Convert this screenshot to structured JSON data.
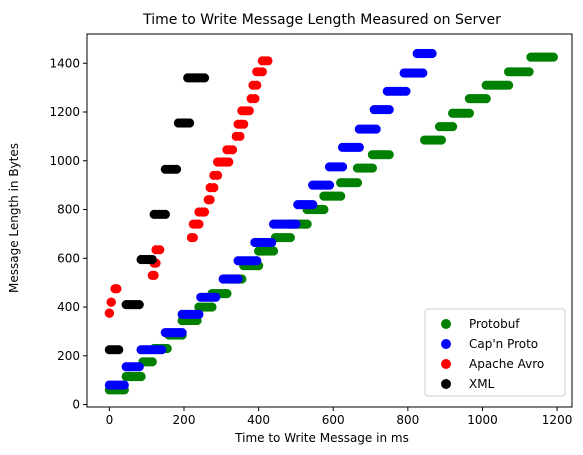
{
  "chart_data": {
    "type": "scatter",
    "title": "Time to Write Message Length Measured on Server",
    "xlabel": "Time to Write Message in ms",
    "ylabel": "Message Length in Bytes",
    "xlim": [
      -60,
      1240
    ],
    "ylim": [
      -10,
      1520
    ],
    "xticks": [
      0,
      200,
      400,
      600,
      800,
      1000,
      1200
    ],
    "yticks": [
      0,
      200,
      400,
      600,
      800,
      1000,
      1200,
      1400
    ],
    "legend_position": "lower-right",
    "grid": false,
    "series": [
      {
        "name": "Protobuf",
        "color": "#008000",
        "clusters": [
          {
            "y": 60,
            "x_min": 0,
            "x_max": 40
          },
          {
            "y": 115,
            "x_min": 45,
            "x_max": 85
          },
          {
            "y": 175,
            "x_min": 90,
            "x_max": 115
          },
          {
            "y": 230,
            "x_min": 120,
            "x_max": 155
          },
          {
            "y": 285,
            "x_min": 160,
            "x_max": 195
          },
          {
            "y": 345,
            "x_min": 195,
            "x_max": 235
          },
          {
            "y": 400,
            "x_min": 240,
            "x_max": 275
          },
          {
            "y": 455,
            "x_min": 275,
            "x_max": 315
          },
          {
            "y": 515,
            "x_min": 320,
            "x_max": 355
          },
          {
            "y": 570,
            "x_min": 360,
            "x_max": 400
          },
          {
            "y": 630,
            "x_min": 400,
            "x_max": 440
          },
          {
            "y": 685,
            "x_min": 445,
            "x_max": 485
          },
          {
            "y": 740,
            "x_min": 485,
            "x_max": 530
          },
          {
            "y": 800,
            "x_min": 530,
            "x_max": 575
          },
          {
            "y": 855,
            "x_min": 575,
            "x_max": 620
          },
          {
            "y": 910,
            "x_min": 620,
            "x_max": 665
          },
          {
            "y": 970,
            "x_min": 665,
            "x_max": 705
          },
          {
            "y": 1025,
            "x_min": 705,
            "x_max": 750
          },
          {
            "y": 1085,
            "x_min": 845,
            "x_max": 890
          },
          {
            "y": 1140,
            "x_min": 885,
            "x_max": 920
          },
          {
            "y": 1195,
            "x_min": 920,
            "x_max": 965
          },
          {
            "y": 1255,
            "x_min": 965,
            "x_max": 1010
          },
          {
            "y": 1310,
            "x_min": 1010,
            "x_max": 1070
          },
          {
            "y": 1365,
            "x_min": 1070,
            "x_max": 1125
          },
          {
            "y": 1425,
            "x_min": 1130,
            "x_max": 1190
          }
        ]
      },
      {
        "name": "Cap'n Proto",
        "color": "#0000ff",
        "clusters": [
          {
            "y": 80,
            "x_min": 0,
            "x_max": 40
          },
          {
            "y": 155,
            "x_min": 45,
            "x_max": 80
          },
          {
            "y": 225,
            "x_min": 85,
            "x_max": 140
          },
          {
            "y": 295,
            "x_min": 150,
            "x_max": 195
          },
          {
            "y": 370,
            "x_min": 195,
            "x_max": 240
          },
          {
            "y": 440,
            "x_min": 245,
            "x_max": 285
          },
          {
            "y": 515,
            "x_min": 305,
            "x_max": 345
          },
          {
            "y": 590,
            "x_min": 345,
            "x_max": 395
          },
          {
            "y": 665,
            "x_min": 390,
            "x_max": 435
          },
          {
            "y": 740,
            "x_min": 440,
            "x_max": 500
          },
          {
            "y": 820,
            "x_min": 505,
            "x_max": 545
          },
          {
            "y": 900,
            "x_min": 545,
            "x_max": 590
          },
          {
            "y": 975,
            "x_min": 590,
            "x_max": 625
          },
          {
            "y": 1055,
            "x_min": 625,
            "x_max": 670
          },
          {
            "y": 1130,
            "x_min": 670,
            "x_max": 715
          },
          {
            "y": 1210,
            "x_min": 710,
            "x_max": 750
          },
          {
            "y": 1285,
            "x_min": 745,
            "x_max": 795
          },
          {
            "y": 1360,
            "x_min": 790,
            "x_max": 840
          },
          {
            "y": 1440,
            "x_min": 825,
            "x_max": 865
          }
        ]
      },
      {
        "name": "Apache Avro",
        "color": "#ff0000",
        "clusters": [
          {
            "y": 375,
            "x_min": 0,
            "x_max": 0
          },
          {
            "y": 420,
            "x_min": 5,
            "x_max": 5
          },
          {
            "y": 475,
            "x_min": 15,
            "x_max": 20
          },
          {
            "y": 530,
            "x_min": 115,
            "x_max": 120
          },
          {
            "y": 580,
            "x_min": 120,
            "x_max": 125
          },
          {
            "y": 635,
            "x_min": 125,
            "x_max": 135
          },
          {
            "y": 685,
            "x_min": 220,
            "x_max": 225
          },
          {
            "y": 740,
            "x_min": 225,
            "x_max": 240
          },
          {
            "y": 790,
            "x_min": 240,
            "x_max": 255
          },
          {
            "y": 840,
            "x_min": 265,
            "x_max": 270
          },
          {
            "y": 890,
            "x_min": 270,
            "x_max": 280
          },
          {
            "y": 940,
            "x_min": 280,
            "x_max": 290
          },
          {
            "y": 995,
            "x_min": 290,
            "x_max": 320
          },
          {
            "y": 1045,
            "x_min": 315,
            "x_max": 330
          },
          {
            "y": 1100,
            "x_min": 340,
            "x_max": 350
          },
          {
            "y": 1150,
            "x_min": 345,
            "x_max": 360
          },
          {
            "y": 1205,
            "x_min": 355,
            "x_max": 375
          },
          {
            "y": 1255,
            "x_min": 380,
            "x_max": 390
          },
          {
            "y": 1310,
            "x_min": 385,
            "x_max": 395
          },
          {
            "y": 1365,
            "x_min": 395,
            "x_max": 410
          },
          {
            "y": 1410,
            "x_min": 410,
            "x_max": 425
          }
        ]
      },
      {
        "name": "XML",
        "color": "#000000",
        "clusters": [
          {
            "y": 225,
            "x_min": 0,
            "x_max": 25
          },
          {
            "y": 410,
            "x_min": 45,
            "x_max": 80
          },
          {
            "y": 595,
            "x_min": 85,
            "x_max": 115
          },
          {
            "y": 780,
            "x_min": 120,
            "x_max": 150
          },
          {
            "y": 965,
            "x_min": 150,
            "x_max": 180
          },
          {
            "y": 1155,
            "x_min": 185,
            "x_max": 215
          },
          {
            "y": 1340,
            "x_min": 210,
            "x_max": 255
          }
        ]
      }
    ]
  }
}
